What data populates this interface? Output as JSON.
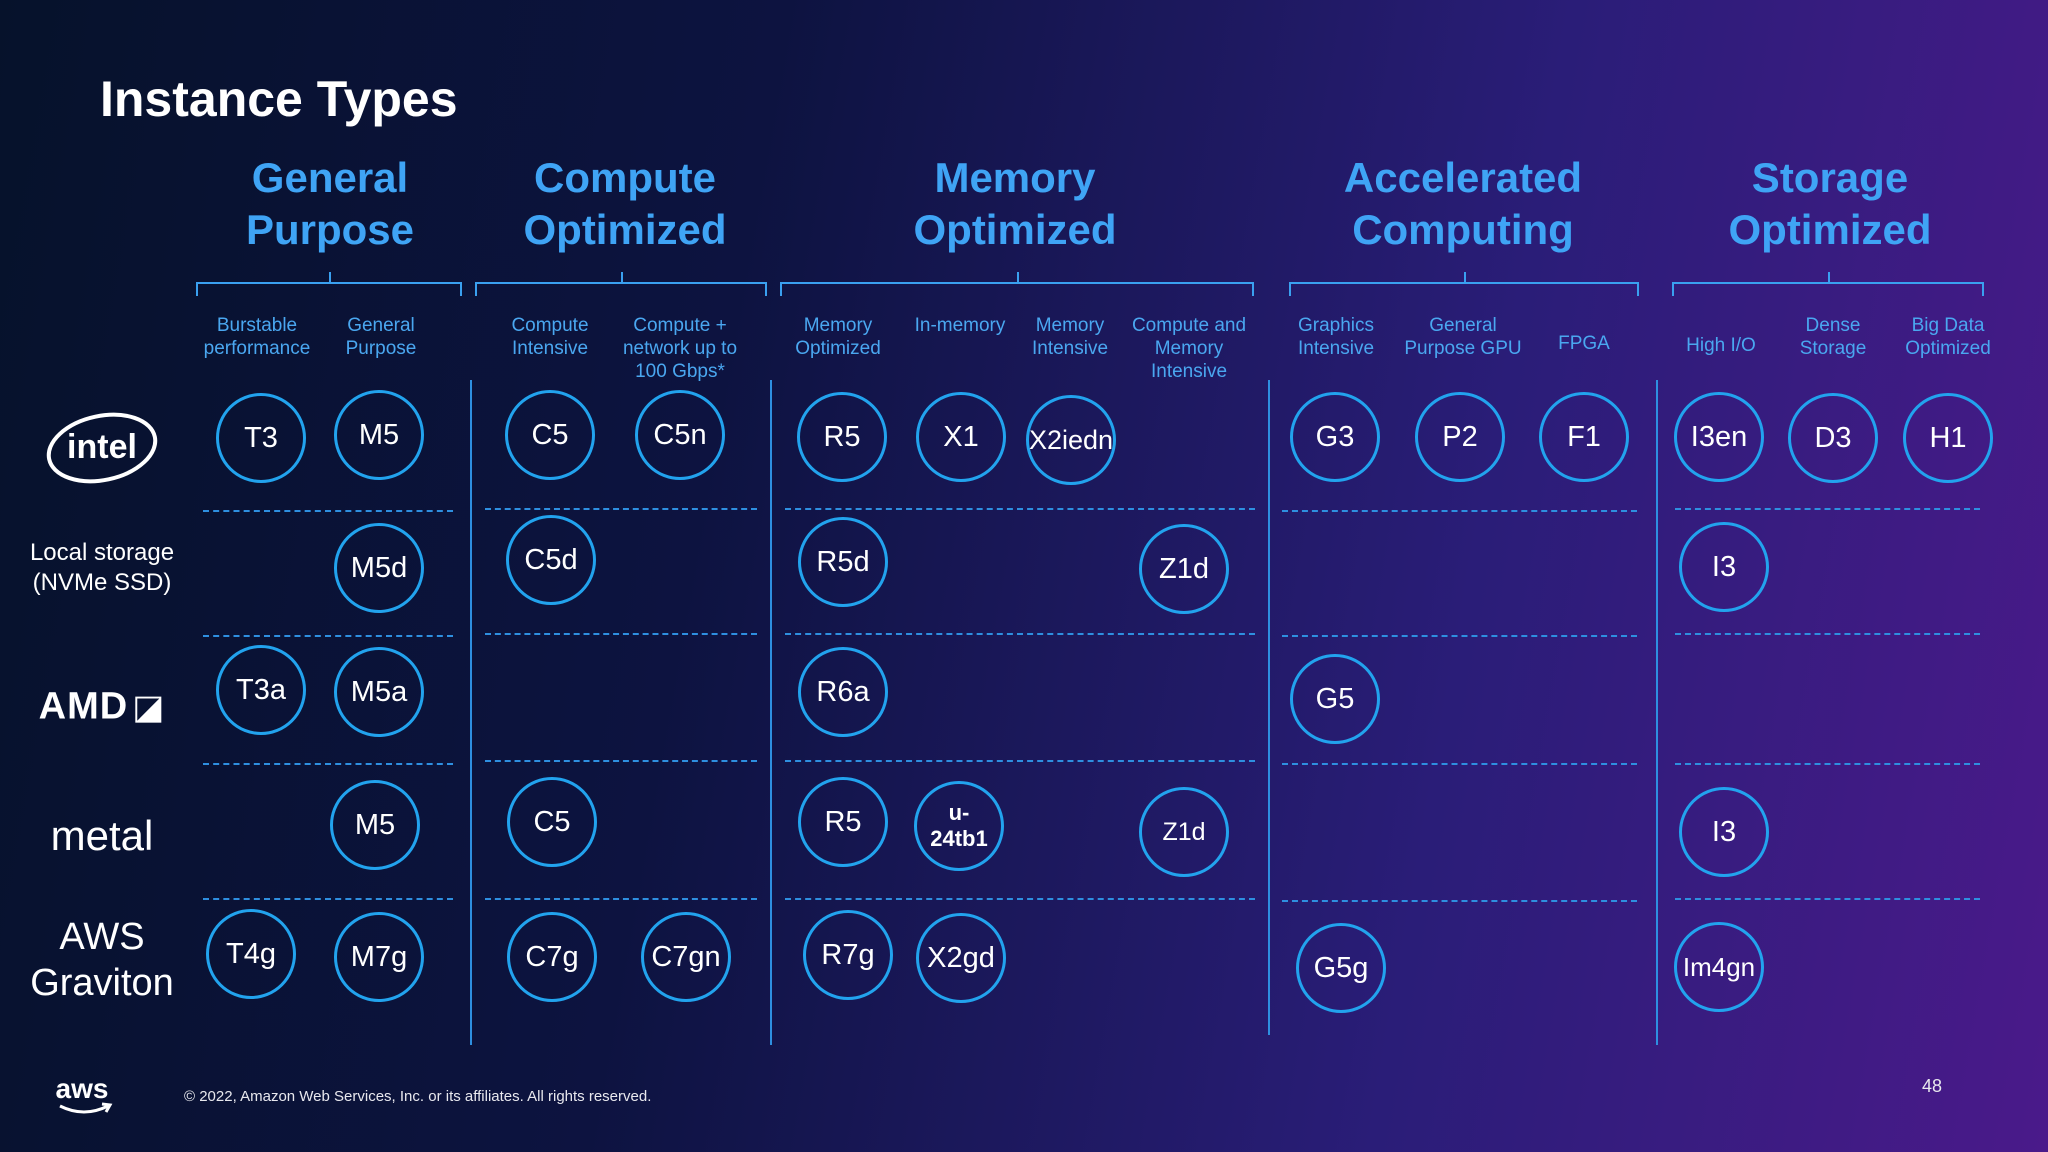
{
  "title": "Instance Types",
  "categories": {
    "general": "General\nPurpose",
    "compute": "Compute\nOptimized",
    "memory": "Memory\nOptimized",
    "accelerated": "Accelerated\nComputing",
    "storage": "Storage\nOptimized"
  },
  "subcategories": {
    "burstable": "Burstable\nperformance",
    "general_purpose": "General\nPurpose",
    "compute_intensive": "Compute\nIntensive",
    "compute_network": "Compute +\nnetwork up to\n100 Gbps*",
    "memory_optimized": "Memory\nOptimized",
    "in_memory": "In-memory",
    "memory_intensive": "Memory\nIntensive",
    "compute_memory": "Compute and\nMemory\nIntensive",
    "graphics": "Graphics\nIntensive",
    "general_gpu": "General\nPurpose GPU",
    "fpga": "FPGA",
    "high_io": "High I/O",
    "dense": "Dense\nStorage",
    "big_data": "Big Data\nOptimized"
  },
  "rows": {
    "intel": "intel",
    "local_storage": "Local storage\n(NVMe SSD)",
    "amd": "AMD",
    "metal": "metal",
    "graviton": "AWS\nGraviton"
  },
  "instances": {
    "t3": "T3",
    "m5": "M5",
    "c5": "C5",
    "c5n": "C5n",
    "r5": "R5",
    "x1": "X1",
    "x2iedn": "X2iedn",
    "g3": "G3",
    "p2": "P2",
    "f1": "F1",
    "i3en": "I3en",
    "d3": "D3",
    "h1": "H1",
    "m5d": "M5d",
    "c5d": "C5d",
    "r5d": "R5d",
    "z1d": "Z1d",
    "i3": "I3",
    "t3a": "T3a",
    "m5a": "M5a",
    "r6a": "R6a",
    "g5": "G5",
    "m5_metal": "M5",
    "c5_metal": "C5",
    "r5_metal": "R5",
    "u24tb1": "u-\n24tb1",
    "z1d_metal": "Z1d",
    "i3_metal": "I3",
    "t4g": "T4g",
    "m7g": "M7g",
    "c7g": "C7g",
    "c7gn": "C7gn",
    "r7g": "R7g",
    "x2gd": "X2gd",
    "g5g": "G5g",
    "im4gn": "Im4gn"
  },
  "footer": {
    "copyright": "© 2022, Amazon Web Services, Inc. or its affiliates. All rights reserved.",
    "page_number": "48",
    "aws_logo_text": "aws"
  },
  "colors": {
    "accent": "#3fa4f5",
    "circle_border": "#22a3ee",
    "divider": "#2e8fe0"
  }
}
